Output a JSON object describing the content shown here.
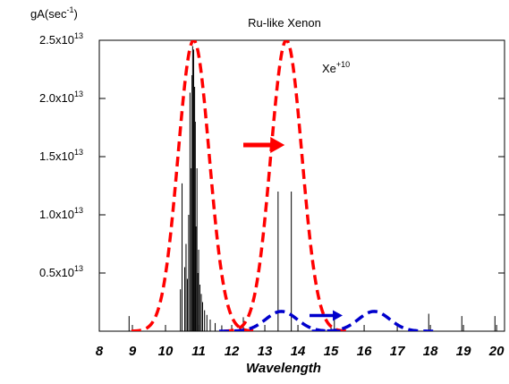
{
  "chart_data": {
    "type": "bar",
    "title": "Ru-like Xenon",
    "ylabel": {
      "base": "gA(sec",
      "sup": "-1",
      "end": ")"
    },
    "xlabel": "Wavelength",
    "annotation": {
      "base": "Xe",
      "sup": "+10"
    },
    "xlim": [
      8,
      20
    ],
    "ylim": [
      0,
      25000000000000.0
    ],
    "x_ticks": [
      "8",
      "9",
      "10",
      "11",
      "12",
      "13",
      "14",
      "15",
      "16",
      "17",
      "18",
      "19",
      "20"
    ],
    "y_ticks": [
      {
        "mant": "0.5x10",
        "exp": "13",
        "value": 5000000000000.0
      },
      {
        "mant": "1.0x10",
        "exp": "13",
        "value": 10000000000000.0
      },
      {
        "mant": "1.5x10",
        "exp": "13",
        "value": 15000000000000.0
      },
      {
        "mant": "2.0x10",
        "exp": "13",
        "value": 20000000000000.0
      },
      {
        "mant": "2.5x10",
        "exp": "13",
        "value": 25000000000000.0
      }
    ],
    "grid": false,
    "series": [
      {
        "style": "sticks",
        "color": "#000000",
        "x": [
          8.9,
          10.45,
          10.5,
          10.58,
          10.62,
          10.66,
          10.7,
          10.74,
          10.78,
          10.8,
          10.82,
          10.85,
          10.88,
          10.9,
          10.92,
          10.95,
          10.98,
          11.0,
          11.04,
          11.08,
          11.12,
          11.18,
          11.25,
          11.35,
          11.5,
          11.7,
          12.35,
          13.4,
          13.8,
          15.1,
          17.95,
          18.95,
          19.95
        ],
        "values": [
          1300000000000.0,
          3600000000000.0,
          12700000000000.0,
          5500000000000.0,
          7500000000000.0,
          4500000000000.0,
          10000000000000.0,
          20500000000000.0,
          14000000000000.0,
          22000000000000.0,
          24500000000000.0,
          24200000000000.0,
          21000000000000.0,
          18000000000000.0,
          9000000000000.0,
          14000000000000.0,
          5000000000000.0,
          7000000000000.0,
          4000000000000.0,
          3200000000000.0,
          2500000000000.0,
          1800000000000.0,
          1400000000000.0,
          1000000000000.0,
          700000000000.0,
          500000000000.0,
          1200000000000.0,
          12000000000000.0,
          12000000000000.0,
          1300000000000.0,
          1500000000000.0,
          1300000000000.0,
          1300000000000.0
        ]
      },
      {
        "style": "gaussian",
        "color": "#ff0000",
        "line": "dashed",
        "centers": [
          10.85,
          13.65
        ],
        "amplitude": 25000000000000.0,
        "sigma": 0.47
      },
      {
        "style": "gaussian",
        "color": "#0000cc",
        "line": "dashed",
        "centers": [
          13.5,
          16.3
        ],
        "amplitude": 1700000000000.0,
        "sigma": 0.47
      }
    ],
    "arrows": [
      {
        "color": "#ff0000",
        "from": [
          12.35,
          16000000000000.0
        ],
        "to": [
          13.6,
          16000000000000.0
        ]
      },
      {
        "color": "#0000cc",
        "from": [
          14.35,
          1350000000000.0
        ],
        "to": [
          15.35,
          1350000000000.0
        ]
      }
    ]
  }
}
